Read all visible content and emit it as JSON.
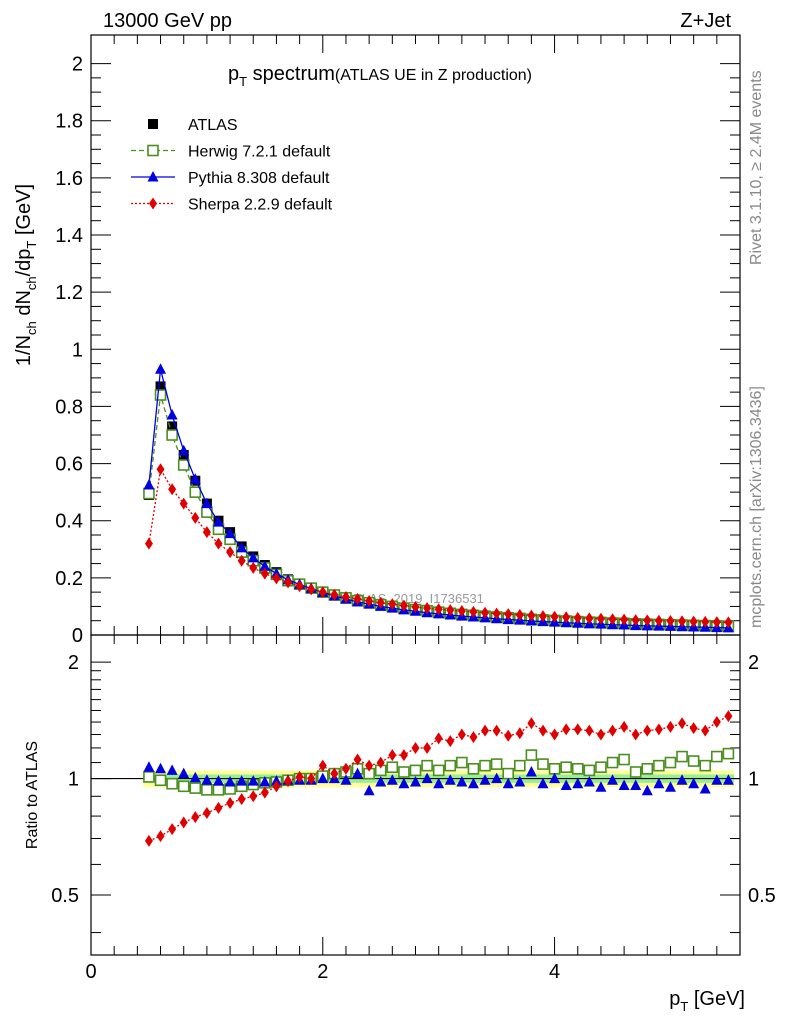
{
  "header": {
    "left": "13000 GeV pp",
    "right": "Z+Jet"
  },
  "side_texts": {
    "rivet": "Rivet 3.1.10, ≥ 2.4M events",
    "mcplots": "mcplots.cern.ch [arXiv:1306.3436]"
  },
  "watermark": "ATLAS_2019_I1736531",
  "main_title": {
    "main": "p",
    "sub": "T",
    "tail": " spectrum",
    "small": "(ATLAS UE in Z production)"
  },
  "chart_data": [
    {
      "type": "scatter",
      "ylabel": "1/N_ch dN_ch/dp_T [GeV]",
      "xlim": [
        0,
        5.6
      ],
      "ylim": [
        0,
        2.1
      ],
      "x_ticks": [
        0,
        2,
        4
      ],
      "y_ticks": [
        0,
        0.2,
        0.4,
        0.6,
        0.8,
        1,
        1.2,
        1.4,
        1.6,
        1.8,
        2
      ],
      "y_tick_labels": [
        "0",
        "0.2",
        "0.4",
        "0.6",
        "0.8",
        "1",
        "1.2",
        "1.4",
        "1.6",
        "1.8",
        "2"
      ],
      "x": [
        0.5,
        0.6,
        0.7,
        0.8,
        0.9,
        1.0,
        1.1,
        1.2,
        1.3,
        1.4,
        1.5,
        1.6,
        1.7,
        1.8,
        1.9,
        2.0,
        2.1,
        2.2,
        2.3,
        2.4,
        2.5,
        2.6,
        2.7,
        2.8,
        2.9,
        3.0,
        3.1,
        3.2,
        3.3,
        3.4,
        3.5,
        3.6,
        3.7,
        3.8,
        3.9,
        4.0,
        4.1,
        4.2,
        4.3,
        4.4,
        4.5,
        4.6,
        4.7,
        4.8,
        4.9,
        5.0,
        5.1,
        5.2,
        5.3,
        5.4,
        5.5
      ],
      "series": [
        {
          "name": "ATLAS",
          "color": "#000000",
          "marker": "filled-square",
          "line": "none",
          "values": [
            0.49,
            0.87,
            0.73,
            0.63,
            0.54,
            0.46,
            0.4,
            0.36,
            0.31,
            0.275,
            0.245,
            0.22,
            0.195,
            0.18,
            0.165,
            0.15,
            0.138,
            0.127,
            0.118,
            0.11,
            0.103,
            0.097,
            0.091,
            0.086,
            0.081,
            0.077,
            0.073,
            0.069,
            0.066,
            0.063,
            0.06,
            0.057,
            0.055,
            0.052,
            0.05,
            0.048,
            0.046,
            0.044,
            0.042,
            0.041,
            0.039,
            0.038,
            0.036,
            0.035,
            0.034,
            0.033,
            0.032,
            0.031,
            0.03,
            0.029,
            0.028
          ]
        },
        {
          "name": "Herwig 7.2.1 default",
          "color": "#4a8f1f",
          "marker": "open-square",
          "line": "dashed",
          "values": [
            0.495,
            0.84,
            0.7,
            0.595,
            0.5,
            0.43,
            0.37,
            0.335,
            0.29,
            0.26,
            0.235,
            0.212,
            0.19,
            0.178,
            0.164,
            0.15,
            0.14,
            0.13,
            0.12,
            0.113,
            0.106,
            0.1,
            0.094,
            0.089,
            0.085,
            0.08,
            0.076,
            0.072,
            0.069,
            0.066,
            0.063,
            0.06,
            0.058,
            0.055,
            0.053,
            0.051,
            0.049,
            0.047,
            0.045,
            0.044,
            0.042,
            0.041,
            0.039,
            0.038,
            0.037,
            0.036,
            0.035,
            0.034,
            0.033,
            0.032,
            0.031
          ]
        },
        {
          "name": "Pythia 8.308 default",
          "color": "#0000e0",
          "marker": "filled-triangle",
          "line": "solid",
          "values": [
            0.525,
            0.93,
            0.77,
            0.645,
            0.545,
            0.46,
            0.395,
            0.355,
            0.305,
            0.27,
            0.24,
            0.215,
            0.193,
            0.177,
            0.163,
            0.149,
            0.137,
            0.126,
            0.116,
            0.108,
            0.1,
            0.094,
            0.088,
            0.083,
            0.078,
            0.074,
            0.07,
            0.066,
            0.063,
            0.06,
            0.057,
            0.054,
            0.052,
            0.049,
            0.047,
            0.045,
            0.043,
            0.041,
            0.039,
            0.038,
            0.036,
            0.035,
            0.033,
            0.032,
            0.031,
            0.03,
            0.029,
            0.028,
            0.027,
            0.026,
            0.025
          ]
        },
        {
          "name": "Sherpa 2.2.9 default",
          "color": "#e00000",
          "marker": "filled-diamond",
          "line": "dotted",
          "values": [
            0.32,
            0.58,
            0.51,
            0.46,
            0.41,
            0.36,
            0.32,
            0.29,
            0.26,
            0.235,
            0.215,
            0.198,
            0.184,
            0.171,
            0.16,
            0.15,
            0.141,
            0.133,
            0.126,
            0.119,
            0.113,
            0.108,
            0.103,
            0.098,
            0.094,
            0.09,
            0.087,
            0.084,
            0.081,
            0.078,
            0.075,
            0.073,
            0.07,
            0.068,
            0.066,
            0.064,
            0.062,
            0.06,
            0.058,
            0.057,
            0.055,
            0.054,
            0.052,
            0.051,
            0.05,
            0.049,
            0.048,
            0.047,
            0.046,
            0.045,
            0.044
          ]
        }
      ]
    },
    {
      "type": "scatter",
      "ylabel": "Ratio to ATLAS",
      "xlabel": "p_T [GeV]",
      "xlim": [
        0,
        5.6
      ],
      "ylim": [
        0.35,
        2.35
      ],
      "y_log": true,
      "y_ticks": [
        0.5,
        1,
        2
      ],
      "y_tick_labels": [
        "0.5",
        "1",
        "2"
      ],
      "x_ticks": [
        0,
        2,
        4
      ],
      "x_tick_labels": [
        "0",
        "2",
        "4"
      ],
      "band_inner": 0.025,
      "band_outer_lo": 0.05,
      "band_outer_hi": 0.05,
      "x": [
        0.5,
        0.6,
        0.7,
        0.8,
        0.9,
        1.0,
        1.1,
        1.2,
        1.3,
        1.4,
        1.5,
        1.6,
        1.7,
        1.8,
        1.9,
        2.0,
        2.1,
        2.2,
        2.3,
        2.4,
        2.5,
        2.6,
        2.7,
        2.8,
        2.9,
        3.0,
        3.1,
        3.2,
        3.3,
        3.4,
        3.5,
        3.6,
        3.7,
        3.8,
        3.9,
        4.0,
        4.1,
        4.2,
        4.3,
        4.4,
        4.5,
        4.6,
        4.7,
        4.8,
        4.9,
        5.0,
        5.1,
        5.2,
        5.3,
        5.4,
        5.5
      ],
      "series": [
        {
          "name": "Herwig 7.2.1 default",
          "color": "#4a8f1f",
          "marker": "open-square",
          "line": "none",
          "values": [
            1.01,
            0.99,
            0.97,
            0.955,
            0.945,
            0.935,
            0.935,
            0.94,
            0.955,
            0.965,
            0.975,
            0.98,
            0.99,
            1.0,
            1.0,
            1.015,
            1.03,
            1.04,
            1.06,
            1.03,
            1.05,
            1.07,
            1.04,
            1.05,
            1.08,
            1.05,
            1.08,
            1.1,
            1.06,
            1.08,
            1.09,
            1.03,
            1.08,
            1.15,
            1.09,
            1.06,
            1.07,
            1.06,
            1.05,
            1.07,
            1.1,
            1.12,
            1.04,
            1.06,
            1.08,
            1.1,
            1.14,
            1.11,
            1.08,
            1.14,
            1.16
          ]
        },
        {
          "name": "Pythia 8.308 default",
          "color": "#0000e0",
          "marker": "filled-triangle",
          "line": "none",
          "values": [
            1.07,
            1.06,
            1.05,
            1.03,
            1.005,
            0.99,
            0.985,
            0.98,
            0.985,
            0.985,
            0.98,
            0.985,
            0.99,
            0.99,
            0.99,
            1.0,
            1.0,
            0.99,
            1.03,
            0.93,
            0.98,
            0.99,
            0.97,
            0.98,
            1.0,
            0.97,
            0.99,
            0.98,
            0.97,
            0.99,
            1.0,
            0.97,
            0.98,
            1.04,
            0.97,
            1.0,
            0.96,
            0.97,
            0.98,
            0.95,
            0.99,
            0.96,
            0.96,
            0.93,
            0.97,
            0.95,
            0.99,
            0.97,
            0.94,
            0.99,
            0.99
          ]
        },
        {
          "name": "Sherpa 2.2.9 default",
          "color": "#e00000",
          "marker": "filled-diamond",
          "line": "dotted",
          "values": [
            0.69,
            0.71,
            0.74,
            0.77,
            0.795,
            0.815,
            0.84,
            0.865,
            0.885,
            0.9,
            0.92,
            0.955,
            0.985,
            1.01,
            1.0,
            1.08,
            1.03,
            1.06,
            1.12,
            1.08,
            1.1,
            1.15,
            1.15,
            1.2,
            1.2,
            1.27,
            1.25,
            1.3,
            1.28,
            1.33,
            1.33,
            1.29,
            1.31,
            1.39,
            1.33,
            1.3,
            1.34,
            1.34,
            1.33,
            1.3,
            1.33,
            1.36,
            1.3,
            1.33,
            1.34,
            1.36,
            1.39,
            1.35,
            1.33,
            1.4,
            1.45
          ]
        }
      ]
    }
  ]
}
